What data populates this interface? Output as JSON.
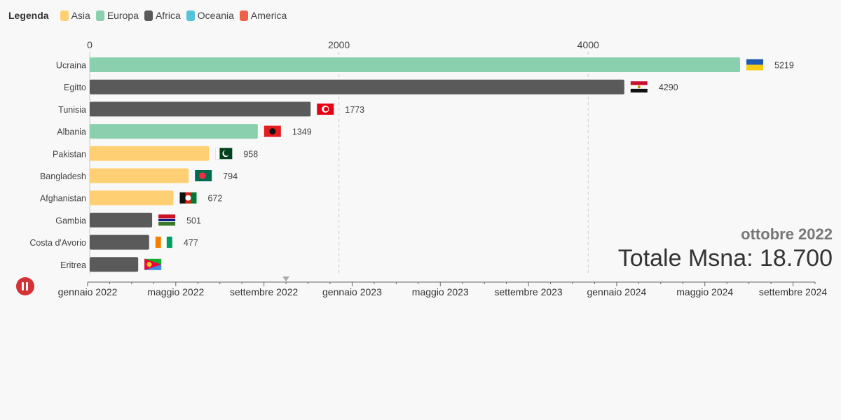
{
  "legend": {
    "title": "Legenda",
    "items": [
      {
        "label": "Asia",
        "color": "#ffcf73"
      },
      {
        "label": "Europa",
        "color": "#8ad0ae"
      },
      {
        "label": "Africa",
        "color": "#5a5a5a"
      },
      {
        "label": "Oceania",
        "color": "#54c4d9"
      },
      {
        "label": "America",
        "color": "#ec634a"
      }
    ]
  },
  "chart_data": {
    "type": "bar",
    "orientation": "horizontal",
    "title": "",
    "xlabel": "",
    "ylabel": "",
    "xlim": [
      0,
      5219
    ],
    "x_ticks": [
      "0",
      "2000",
      "4000"
    ],
    "grid": true,
    "legend_position": "top-left",
    "categories": [
      "Ucraina",
      "Egitto",
      "Tunisia",
      "Albania",
      "Pakistan",
      "Bangladesh",
      "Afghanistan",
      "Gambia",
      "Costa d'Avorio",
      "Eritrea"
    ],
    "values": [
      5219,
      4290,
      1773,
      1349,
      958,
      794,
      672,
      501,
      477,
      389
    ],
    "value_labels": [
      "5219",
      "4290",
      "1773",
      "1349",
      "958",
      "794",
      "672",
      "501",
      "477",
      ""
    ],
    "continents": [
      "Europa",
      "Africa",
      "Africa",
      "Europa",
      "Asia",
      "Asia",
      "Asia",
      "Africa",
      "Africa",
      "Africa"
    ],
    "flags": [
      "ukraine-flag",
      "egypt-flag",
      "tunisia-flag",
      "albania-flag",
      "pakistan-flag",
      "bangladesh-flag",
      "afghanistan-flag",
      "gambia-flag",
      "ivory-coast-flag",
      "eritrea-flag"
    ]
  },
  "timeline": {
    "labels": [
      "gennaio 2022",
      "maggio 2022",
      "settembre 2022",
      "gennaio 2023",
      "maggio 2023",
      "settembre 2023",
      "gennaio 2024",
      "maggio 2024",
      "settembre 2024"
    ],
    "current_month_index": 9,
    "total_months": 33
  },
  "status": {
    "month": "ottobre 2022",
    "total": "Totale Msna: 18.700"
  }
}
